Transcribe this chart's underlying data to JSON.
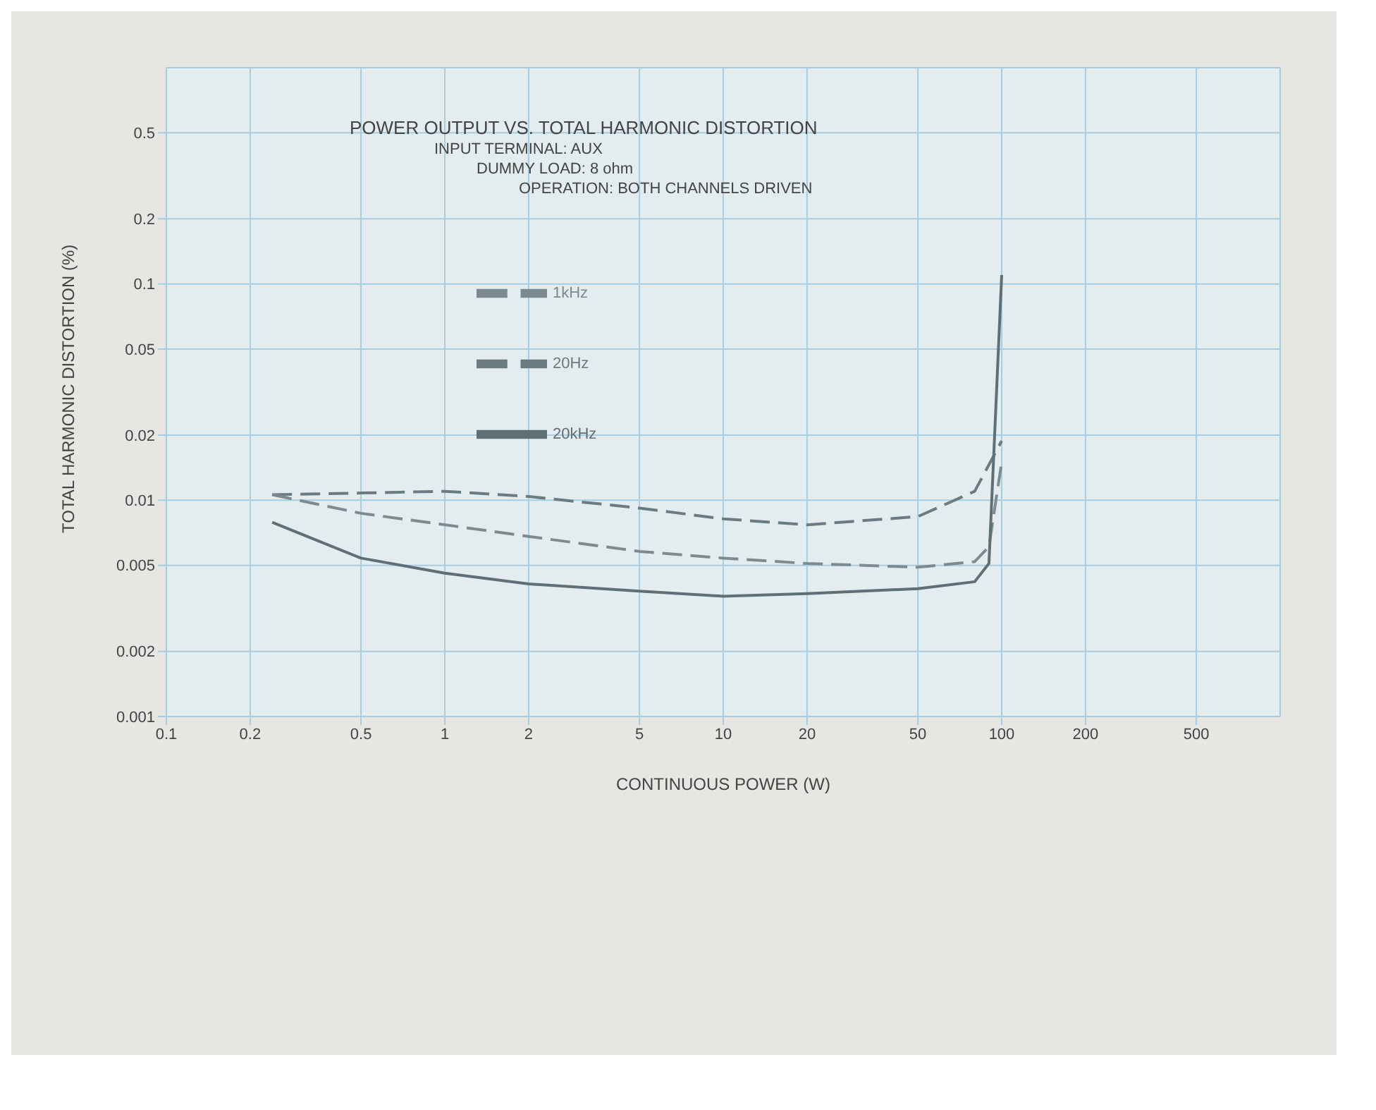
{
  "chart_data": {
    "type": "line",
    "title": "POWER OUTPUT VS. TOTAL HARMONIC DISTORTION",
    "annotations": [
      "INPUT TERMINAL: AUX",
      "DUMMY LOAD: 8 ohm",
      "OPERATION: BOTH CHANNELS DRIVEN"
    ],
    "xlabel": "CONTINUOUS POWER (W)",
    "ylabel": "TOTAL HARMONIC DISTORTION (%)",
    "log": "xy",
    "grid": true,
    "legend": "top",
    "marker": "none",
    "xlim": [
      0.1,
      1000
    ],
    "xticks": [
      0.1,
      0.2,
      0.5,
      1,
      2,
      5,
      10,
      20,
      50,
      100,
      200,
      500
    ],
    "ylim": [
      0.001,
      1
    ],
    "yticks": [
      0.001,
      0.002,
      0.005,
      0.01,
      0.02,
      0.05,
      0.1,
      0.2,
      0.5
    ],
    "series": [
      {
        "name": "20Hz",
        "color": "#6b7b82",
        "line_style": "dashed",
        "x": [
          0.24,
          0.5,
          1,
          2,
          5,
          10,
          20,
          50,
          80,
          100
        ],
        "values": [
          0.0106,
          0.0108,
          0.011,
          0.0104,
          0.0092,
          0.0082,
          0.0077,
          0.0084,
          0.011,
          0.0188
        ]
      },
      {
        "name": "1kHz",
        "color": "#7d8b90",
        "line_style": "dashed",
        "x": [
          0.24,
          0.5,
          1,
          2,
          5,
          10,
          20,
          50,
          80,
          90,
          100
        ],
        "values": [
          0.0106,
          0.0087,
          0.0077,
          0.0068,
          0.0058,
          0.0054,
          0.0051,
          0.0049,
          0.0052,
          0.0061,
          0.015
        ]
      },
      {
        "name": "20kHz",
        "color": "#5f6f76",
        "line_style": "solid",
        "x": [
          0.24,
          0.5,
          1,
          2,
          5,
          10,
          20,
          50,
          80,
          90,
          100
        ],
        "values": [
          0.0079,
          0.0054,
          0.0046,
          0.0041,
          0.0038,
          0.0036,
          0.0037,
          0.0039,
          0.0042,
          0.0051,
          0.11
        ]
      }
    ]
  }
}
